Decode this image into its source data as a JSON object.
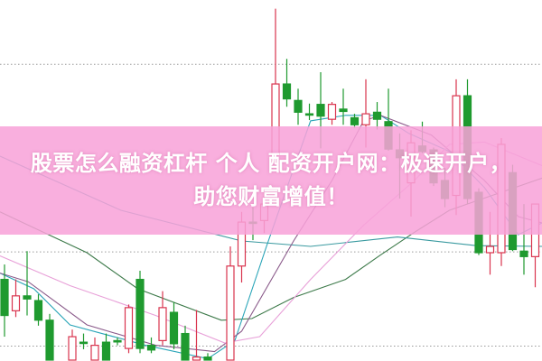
{
  "banner": {
    "line1": "股票怎么融资杠杆 个人 配资开户网：极速开户，",
    "line2": "助您财富增值！"
  },
  "colors": {
    "up": "#d9344e",
    "down": "#1f9a2f",
    "banner": "#f8a2d8",
    "grid": "#9a9a9a"
  },
  "chart_data": {
    "type": "candlestick",
    "ylim": [
      0,
      460
    ],
    "grid": true,
    "gridlines": [
      378,
      139,
      19
    ],
    "candles": [
      {
        "o": 104,
        "h": 123,
        "l": 31,
        "c": 58
      },
      {
        "o": 64,
        "h": 104,
        "l": 56,
        "c": 83
      },
      {
        "o": 83,
        "h": 140,
        "l": 58,
        "c": 79
      },
      {
        "o": 77,
        "h": 85,
        "l": 45,
        "c": 52
      },
      {
        "o": 52,
        "h": 60,
        "l": -10,
        "c": 0
      },
      {
        "o": -20,
        "h": -15,
        "l": -30,
        "c": -25
      },
      {
        "o": -5,
        "h": 40,
        "l": -10,
        "c": 31
      },
      {
        "o": 24,
        "h": 35,
        "l": 15,
        "c": 23
      },
      {
        "o": -5,
        "h": 30,
        "l": -10,
        "c": 20
      },
      {
        "o": 24,
        "h": 35,
        "l": -10,
        "c": -5
      },
      {
        "o": 26,
        "h": 30,
        "l": 20,
        "c": 25
      },
      {
        "o": 16,
        "h": 72,
        "l": 10,
        "c": 68
      },
      {
        "o": 104,
        "h": 115,
        "l": 10,
        "c": 16
      },
      {
        "o": 20,
        "h": 30,
        "l": 10,
        "c": 14
      },
      {
        "o": 26,
        "h": 89,
        "l": 20,
        "c": 68
      },
      {
        "o": 62,
        "h": 75,
        "l": 15,
        "c": 22
      },
      {
        "o": 35,
        "h": 45,
        "l": -10,
        "c": -5
      },
      {
        "o": -2,
        "h": 65,
        "l": -10,
        "c": 5
      },
      {
        "o": 5,
        "h": 10,
        "l": -10,
        "c": -5
      },
      {
        "o": -20,
        "h": -15,
        "l": -30,
        "c": -25
      },
      {
        "o": -5,
        "h": 146,
        "l": -10,
        "c": 121
      },
      {
        "o": 121,
        "h": 190,
        "l": 100,
        "c": 177
      },
      {
        "o": 177,
        "h": 196,
        "l": 154,
        "c": 176
      },
      {
        "o": 179,
        "h": 215,
        "l": 163,
        "c": 200
      },
      {
        "o": 263,
        "h": 449,
        "l": 260,
        "c": 353
      },
      {
        "o": 353,
        "h": 385,
        "l": 324,
        "c": 334
      },
      {
        "o": 332,
        "h": 347,
        "l": 301,
        "c": 317
      },
      {
        "o": 315,
        "h": 328,
        "l": 307,
        "c": 314
      },
      {
        "o": 327,
        "h": 368,
        "l": 271,
        "c": 312
      },
      {
        "o": 308,
        "h": 330,
        "l": 301,
        "c": 327
      },
      {
        "o": 321,
        "h": 347,
        "l": 301,
        "c": 318
      },
      {
        "o": 310,
        "h": 315,
        "l": 297,
        "c": 301
      },
      {
        "o": 301,
        "h": 359,
        "l": 272,
        "c": 315
      },
      {
        "o": 317,
        "h": 330,
        "l": 295,
        "c": 308
      },
      {
        "o": 305,
        "h": 347,
        "l": 268,
        "c": 270
      },
      {
        "o": 269,
        "h": 290,
        "l": 207,
        "c": 259
      },
      {
        "o": 227,
        "h": 294,
        "l": 184,
        "c": 278
      },
      {
        "o": 274,
        "h": 305,
        "l": 265,
        "c": 267
      },
      {
        "o": 269,
        "h": 272,
        "l": 223,
        "c": 227
      },
      {
        "o": 230,
        "h": 246,
        "l": 196,
        "c": 207
      },
      {
        "o": 211,
        "h": 359,
        "l": 186,
        "c": 338
      },
      {
        "o": 338,
        "h": 359,
        "l": 200,
        "c": 207
      },
      {
        "o": 215,
        "h": 220,
        "l": 135,
        "c": 138
      },
      {
        "o": 138,
        "h": 190,
        "l": 110,
        "c": 146
      },
      {
        "o": 138,
        "h": 284,
        "l": 121,
        "c": 276
      },
      {
        "o": 240,
        "h": 250,
        "l": 140,
        "c": 142
      },
      {
        "o": 140,
        "h": 200,
        "l": 110,
        "c": 133
      },
      {
        "o": 133,
        "h": 200,
        "l": 94,
        "c": 200
      }
    ],
    "moving_averages": [
      {
        "color": "#3d7a4a",
        "points": [
          [
            0.6,
            190
          ],
          [
            8.3,
            138
          ],
          [
            12.8,
            92
          ],
          [
            20.2,
            52
          ],
          [
            22.9,
            54
          ],
          [
            26.6,
            81
          ],
          [
            31.2,
            104
          ],
          [
            34.3,
            135
          ],
          [
            37.3,
            164
          ],
          [
            40.4,
            192
          ],
          [
            45,
            215
          ],
          [
            48.6,
            233
          ]
        ]
      },
      {
        "color": "#3a9aa0",
        "points": [
          [
            0.6,
            261
          ],
          [
            11.3,
            192
          ],
          [
            22,
            153
          ],
          [
            28.1,
            146
          ],
          [
            35.8,
            158
          ],
          [
            42.8,
            147
          ],
          [
            48.6,
            146
          ]
        ]
      },
      {
        "color": "#2aa5b8",
        "points": [
          [
            0.6,
            112
          ],
          [
            3.6,
            92
          ],
          [
            6.8,
            46
          ],
          [
            13.5,
            20
          ],
          [
            19,
            3
          ],
          [
            21.4,
            26
          ],
          [
            24.2,
            146
          ],
          [
            26.6,
            245
          ],
          [
            28.1,
            306
          ],
          [
            31.2,
            313
          ],
          [
            34.3,
            313
          ],
          [
            36.8,
            290
          ],
          [
            40.4,
            267
          ],
          [
            43.5,
            221
          ],
          [
            46.5,
            161
          ],
          [
            48.6,
            176
          ]
        ]
      },
      {
        "color": "#8a5a8a",
        "points": [
          [
            0.6,
            112
          ],
          [
            3.1,
            101
          ],
          [
            8.3,
            46
          ],
          [
            14.4,
            20
          ],
          [
            19.6,
            12
          ],
          [
            22,
            38
          ],
          [
            26.6,
            153
          ],
          [
            30,
            230
          ],
          [
            32.8,
            306
          ],
          [
            34.3,
            313
          ],
          [
            38.8,
            288
          ],
          [
            43.5,
            230
          ],
          [
            46.5,
            184
          ],
          [
            48.6,
            176
          ]
        ]
      },
      {
        "color": "#e8a0d8",
        "points": [
          [
            0.6,
            134
          ],
          [
            6.8,
            96
          ],
          [
            14.4,
            58
          ],
          [
            20.5,
            23
          ],
          [
            23.6,
            31
          ],
          [
            28.1,
            104
          ],
          [
            32.8,
            173
          ],
          [
            37.3,
            230
          ],
          [
            40.4,
            276
          ],
          [
            43.5,
            279
          ],
          [
            48.6,
            249
          ]
        ]
      }
    ]
  }
}
